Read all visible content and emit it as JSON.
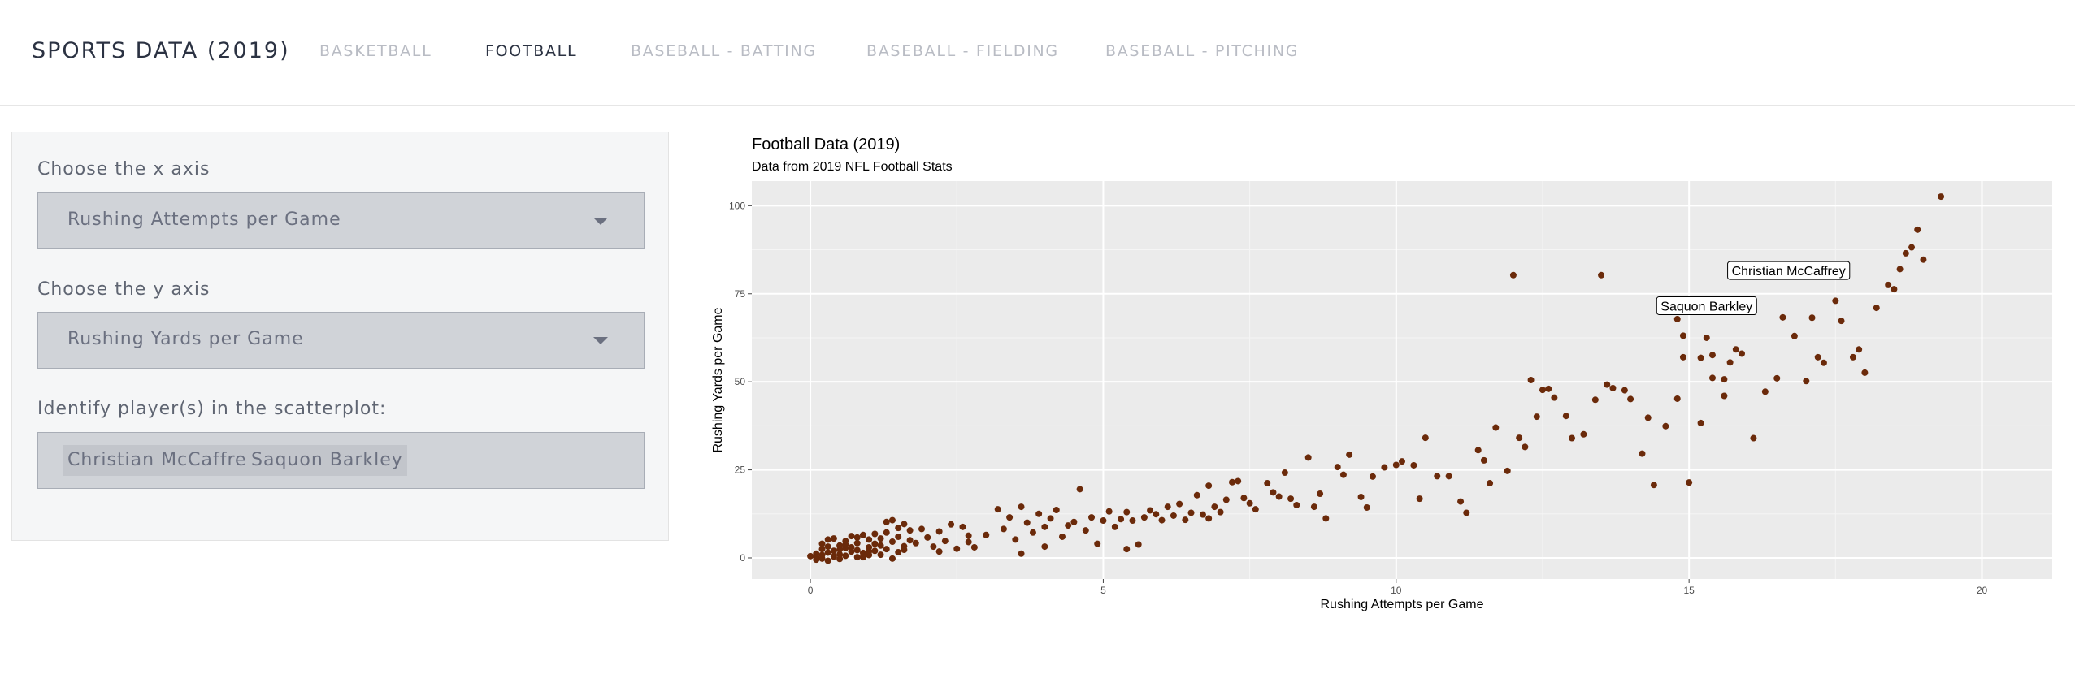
{
  "navbar": {
    "brand": "SPORTS DATA (2019)",
    "links": [
      "BASKETBALL",
      "FOOTBALL",
      "BASEBALL - BATTING",
      "BASEBALL - FIELDING",
      "BASEBALL - PITCHING"
    ],
    "active": "FOOTBALL"
  },
  "controls": {
    "x_label": "Choose the x axis",
    "x_value": "Rushing Attempts per Game",
    "y_label": "Choose the y axis",
    "y_value": "Rushing Yards per Game",
    "players_label": "Identify player(s) in the scatterplot:",
    "players": [
      "Christian McCaffrey",
      "Saquon Barkley"
    ]
  },
  "colors": {
    "point": "#6b2a0a",
    "panel_bg": "#ebebeb",
    "active_nav": "#2b3242",
    "inactive_nav": "#b9bcc4"
  },
  "chart_data": {
    "type": "scatter",
    "title": "Football Data (2019)",
    "subtitle": "Data from 2019 NFL Football Stats",
    "xlabel": "Rushing Attempts per Game",
    "ylabel": "Rushing Yards per Game",
    "xlim": [
      -1,
      21.2
    ],
    "ylim": [
      -6,
      107
    ],
    "xticks": [
      0,
      5,
      10,
      15,
      20
    ],
    "yticks": [
      0,
      25,
      50,
      75,
      100
    ],
    "grid": true,
    "annotations": [
      {
        "text": "Christian McCaffrey",
        "x": 16.7,
        "y": 77
      },
      {
        "text": "Saquon Barkley",
        "x": 15.3,
        "y": 67
      }
    ],
    "points": [
      [
        0.0,
        0.5
      ],
      [
        0.1,
        0.2
      ],
      [
        0.1,
        1.2
      ],
      [
        0.1,
        -0.5
      ],
      [
        0.2,
        0.8
      ],
      [
        0.2,
        2.5
      ],
      [
        0.2,
        4.0
      ],
      [
        0.3,
        1.5
      ],
      [
        0.3,
        -0.8
      ],
      [
        0.3,
        3.2
      ],
      [
        0.4,
        0.4
      ],
      [
        0.4,
        2.0
      ],
      [
        0.5,
        1.0
      ],
      [
        0.5,
        3.5
      ],
      [
        0.5,
        -0.3
      ],
      [
        0.6,
        2.8
      ],
      [
        0.6,
        0.6
      ],
      [
        0.6,
        4.8
      ],
      [
        0.7,
        1.8
      ],
      [
        0.7,
        3.0
      ],
      [
        0.8,
        0.2
      ],
      [
        0.8,
        2.2
      ],
      [
        0.8,
        4.2
      ],
      [
        0.9,
        1.4
      ],
      [
        0.9,
        6.5
      ],
      [
        1.0,
        0.8
      ],
      [
        1.0,
        3.0
      ],
      [
        1.0,
        5.2
      ],
      [
        1.1,
        2.0
      ],
      [
        1.1,
        4.0
      ],
      [
        1.1,
        6.8
      ],
      [
        1.2,
        0.9
      ],
      [
        1.2,
        3.5
      ],
      [
        1.3,
        2.5
      ],
      [
        1.3,
        7.2
      ],
      [
        1.4,
        -0.2
      ],
      [
        1.4,
        4.6
      ],
      [
        1.5,
        1.6
      ],
      [
        1.5,
        6.0
      ],
      [
        1.6,
        3.3
      ],
      [
        0.4,
        5.5
      ],
      [
        0.7,
        6.2
      ],
      [
        0.9,
        0.2
      ],
      [
        0.5,
        2.4
      ],
      [
        0.2,
        -0.2
      ],
      [
        0.3,
        5.2
      ],
      [
        0.6,
        3.8
      ],
      [
        0.8,
        5.8
      ],
      [
        1.0,
        1.8
      ],
      [
        1.2,
        5.5
      ],
      [
        1.6,
        2.3
      ],
      [
        1.7,
        7.8
      ],
      [
        1.8,
        4.2
      ],
      [
        1.9,
        8.2
      ],
      [
        1.3,
        10.2
      ],
      [
        1.4,
        10.7
      ],
      [
        1.5,
        8.5
      ],
      [
        1.7,
        5.0
      ],
      [
        1.6,
        9.6
      ],
      [
        2.0,
        5.8
      ],
      [
        2.1,
        3.2
      ],
      [
        2.2,
        7.5
      ],
      [
        2.2,
        1.8
      ],
      [
        2.3,
        4.8
      ],
      [
        2.4,
        9.5
      ],
      [
        2.5,
        2.6
      ],
      [
        2.6,
        8.8
      ],
      [
        2.7,
        4.5
      ],
      [
        2.7,
        6.3
      ],
      [
        2.8,
        3.0
      ],
      [
        3.0,
        6.5
      ],
      [
        3.2,
        13.8
      ],
      [
        3.3,
        8.2
      ],
      [
        3.4,
        11.5
      ],
      [
        3.5,
        5.2
      ],
      [
        3.6,
        14.5
      ],
      [
        3.6,
        1.2
      ],
      [
        3.7,
        10.0
      ],
      [
        3.8,
        7.2
      ],
      [
        3.9,
        12.5
      ],
      [
        4.0,
        3.2
      ],
      [
        4.0,
        8.8
      ],
      [
        4.1,
        11.2
      ],
      [
        4.2,
        13.6
      ],
      [
        4.3,
        6.0
      ],
      [
        4.4,
        9.2
      ],
      [
        4.5,
        10.2
      ],
      [
        4.6,
        19.5
      ],
      [
        4.7,
        7.8
      ],
      [
        4.8,
        11.5
      ],
      [
        4.9,
        4.0
      ],
      [
        5.0,
        10.6
      ],
      [
        5.1,
        13.2
      ],
      [
        5.2,
        8.8
      ],
      [
        5.3,
        11.0
      ],
      [
        5.4,
        2.5
      ],
      [
        5.4,
        13.0
      ],
      [
        5.5,
        10.6
      ],
      [
        5.6,
        3.8
      ],
      [
        5.7,
        11.5
      ],
      [
        5.8,
        13.5
      ],
      [
        5.9,
        12.4
      ],
      [
        6.0,
        10.7
      ],
      [
        6.1,
        14.5
      ],
      [
        6.2,
        12.0
      ],
      [
        6.3,
        15.3
      ],
      [
        6.4,
        10.8
      ],
      [
        6.5,
        12.8
      ],
      [
        6.6,
        17.8
      ],
      [
        6.7,
        12.3
      ],
      [
        6.8,
        20.5
      ],
      [
        6.8,
        11.2
      ],
      [
        6.9,
        14.5
      ],
      [
        7.0,
        13.0
      ],
      [
        7.1,
        16.5
      ],
      [
        7.2,
        21.5
      ],
      [
        7.3,
        21.8
      ],
      [
        7.4,
        17.0
      ],
      [
        7.5,
        15.5
      ],
      [
        7.6,
        13.8
      ],
      [
        7.8,
        21.2
      ],
      [
        7.9,
        18.6
      ],
      [
        8.0,
        17.4
      ],
      [
        8.1,
        24.2
      ],
      [
        8.2,
        16.8
      ],
      [
        8.3,
        15.0
      ],
      [
        8.5,
        28.5
      ],
      [
        8.6,
        14.5
      ],
      [
        8.7,
        18.2
      ],
      [
        8.8,
        11.2
      ],
      [
        9.0,
        25.8
      ],
      [
        9.1,
        23.6
      ],
      [
        9.2,
        29.3
      ],
      [
        9.4,
        17.3
      ],
      [
        9.5,
        14.3
      ],
      [
        9.6,
        23.1
      ],
      [
        9.8,
        25.7
      ],
      [
        10.0,
        26.4
      ],
      [
        10.1,
        27.4
      ],
      [
        10.3,
        26.3
      ],
      [
        10.4,
        16.8
      ],
      [
        10.5,
        34.1
      ],
      [
        10.7,
        23.2
      ],
      [
        10.9,
        23.2
      ],
      [
        11.1,
        16.0
      ],
      [
        11.2,
        12.8
      ],
      [
        11.4,
        30.6
      ],
      [
        11.5,
        27.7
      ],
      [
        11.6,
        21.2
      ],
      [
        11.7,
        37.0
      ],
      [
        11.9,
        24.7
      ],
      [
        12.1,
        34.1
      ],
      [
        12.2,
        31.5
      ],
      [
        12.3,
        50.5
      ],
      [
        12.4,
        40.1
      ],
      [
        12.5,
        47.7
      ],
      [
        12.6,
        48.0
      ],
      [
        12.7,
        45.5
      ],
      [
        12.9,
        40.3
      ],
      [
        13.0,
        34.0
      ],
      [
        13.2,
        35.1
      ],
      [
        13.4,
        44.9
      ],
      [
        13.5,
        80.3
      ],
      [
        13.6,
        49.2
      ],
      [
        13.7,
        48.2
      ],
      [
        13.9,
        47.6
      ],
      [
        14.0,
        45.1
      ],
      [
        14.2,
        29.6
      ],
      [
        14.3,
        39.8
      ],
      [
        14.4,
        20.7
      ],
      [
        14.6,
        37.4
      ],
      [
        14.8,
        45.2
      ],
      [
        15.0,
        21.4
      ],
      [
        15.2,
        38.3
      ],
      [
        15.3,
        62.5
      ],
      [
        15.4,
        57.6
      ],
      [
        15.6,
        46.0
      ],
      [
        15.7,
        55.5
      ],
      [
        15.8,
        59.2
      ],
      [
        15.9,
        58.0
      ],
      [
        16.1,
        34.0
      ],
      [
        16.3,
        47.2
      ],
      [
        16.5,
        51.0
      ],
      [
        16.6,
        68.3
      ],
      [
        16.8,
        63.0
      ],
      [
        17.0,
        50.2
      ],
      [
        17.1,
        68.2
      ],
      [
        17.2,
        57.0
      ],
      [
        17.3,
        55.4
      ],
      [
        17.5,
        73.0
      ],
      [
        17.6,
        67.3
      ],
      [
        17.8,
        57.0
      ],
      [
        17.9,
        59.2
      ],
      [
        18.0,
        52.6
      ],
      [
        18.2,
        71.0
      ],
      [
        18.4,
        77.5
      ],
      [
        18.5,
        76.3
      ],
      [
        18.6,
        82.0
      ],
      [
        18.7,
        86.5
      ],
      [
        18.8,
        88.2
      ],
      [
        18.9,
        93.2
      ],
      [
        19.0,
        84.7
      ],
      [
        19.3,
        102.6
      ],
      [
        12.0,
        80.3
      ],
      [
        14.8,
        67.8
      ],
      [
        14.9,
        63.1
      ],
      [
        15.2,
        56.8
      ],
      [
        15.4,
        51.1
      ],
      [
        15.6,
        50.7
      ],
      [
        14.9,
        57.0
      ]
    ]
  }
}
